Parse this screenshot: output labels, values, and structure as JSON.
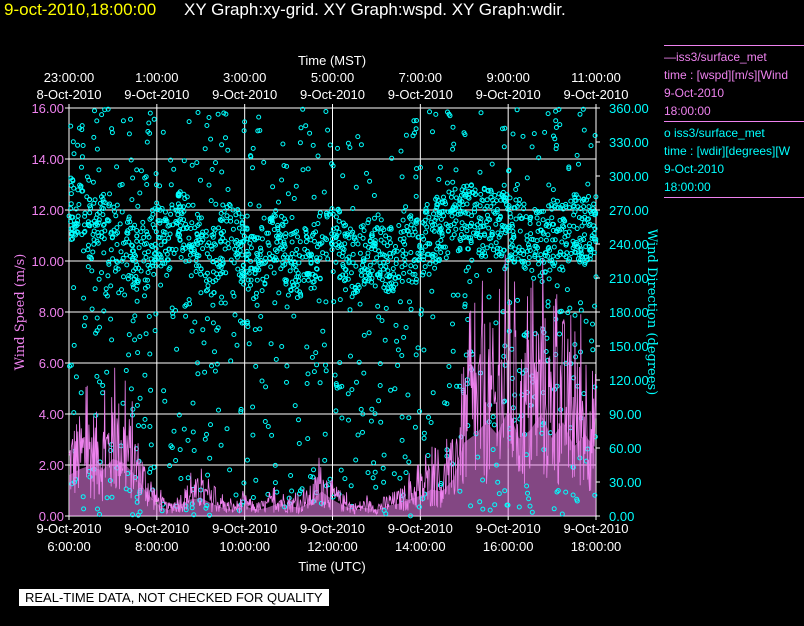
{
  "header": {
    "datetime": "9-oct-2010,18:00:00",
    "titles": "XY Graph:xy-grid.  XY Graph:wspd.  XY Graph:wdir."
  },
  "legend": {
    "wspd": {
      "line1": "—iss3/surface_met",
      "line2": "time : [wspd][m/s][Wind",
      "line3": "9-Oct-2010",
      "line4": "18:00:00"
    },
    "wdir": {
      "line1": "o  iss3/surface_met",
      "line2": "time : [wdir][degrees][W",
      "line3": "9-Oct-2010",
      "line4": "18:00:00"
    }
  },
  "footer": {
    "quality_note": "REAL-TIME DATA, NOT CHECKED FOR QUALITY"
  },
  "chart_data": {
    "type": "line",
    "x_axis_bottom": {
      "label": "Time (UTC)",
      "ticks": [
        {
          "date": "9-Oct-2010",
          "time": "6:00:00"
        },
        {
          "date": "9-Oct-2010",
          "time": "8:00:00"
        },
        {
          "date": "9-Oct-2010",
          "time": "10:00:00"
        },
        {
          "date": "9-Oct-2010",
          "time": "12:00:00"
        },
        {
          "date": "9-Oct-2010",
          "time": "14:00:00"
        },
        {
          "date": "9-Oct-2010",
          "time": "16:00:00"
        },
        {
          "date": "9-Oct-2010",
          "time": "18:00:00"
        }
      ]
    },
    "x_axis_top": {
      "label": "Time (MST)",
      "ticks": [
        {
          "time": "23:00:00",
          "date": "8-Oct-2010"
        },
        {
          "time": "1:00:00",
          "date": "9-Oct-2010"
        },
        {
          "time": "3:00:00",
          "date": "9-Oct-2010"
        },
        {
          "time": "5:00:00",
          "date": "9-Oct-2010"
        },
        {
          "time": "7:00:00",
          "date": "9-Oct-2010"
        },
        {
          "time": "9:00:00",
          "date": "9-Oct-2010"
        },
        {
          "time": "11:00:00",
          "date": "9-Oct-2010"
        }
      ]
    },
    "xlim_utc_hours": [
      6,
      18
    ],
    "y_left": {
      "label": "Wind Speed (m/s)",
      "ylim": [
        0,
        16
      ],
      "ticks": [
        "0.00",
        "2.00",
        "4.00",
        "6.00",
        "8.00",
        "10.00",
        "12.00",
        "14.00",
        "16.00"
      ]
    },
    "y_right": {
      "label": "Wind Direction (degrees)",
      "ylim": [
        0,
        360
      ],
      "ticks": [
        "0.00",
        "30.00",
        "60.00",
        "90.00",
        "120.00",
        "150.00",
        "180.00",
        "210.00",
        "240.00",
        "270.00",
        "300.00",
        "330.00",
        "360.00"
      ]
    },
    "grid": true,
    "series": [
      {
        "name": "iss3/surface_met wspd",
        "kind": "line",
        "color": "#ee82ee",
        "x_utc_hours": [
          6.0,
          6.25,
          6.5,
          6.75,
          7.0,
          7.25,
          7.5,
          7.75,
          8.0,
          8.25,
          8.5,
          8.75,
          9.0,
          9.25,
          9.5,
          9.75,
          10.0,
          10.25,
          10.5,
          10.75,
          11.0,
          11.25,
          11.5,
          11.75,
          12.0,
          12.25,
          12.5,
          12.75,
          13.0,
          13.25,
          13.5,
          13.75,
          14.0,
          14.25,
          14.5,
          14.75,
          15.0,
          15.25,
          15.5,
          15.75,
          16.0,
          16.25,
          16.5,
          16.75,
          17.0,
          17.25,
          17.5,
          17.75,
          18.0
        ],
        "values": [
          2.0,
          2.3,
          2.5,
          2.2,
          2.8,
          2.6,
          2.0,
          1.2,
          0.6,
          0.3,
          0.5,
          0.8,
          0.9,
          0.6,
          0.4,
          0.3,
          0.5,
          0.3,
          0.4,
          0.6,
          0.5,
          0.4,
          0.7,
          1.2,
          0.8,
          0.5,
          0.3,
          0.4,
          0.3,
          0.5,
          0.6,
          0.8,
          1.0,
          1.3,
          1.2,
          1.8,
          3.6,
          4.0,
          4.6,
          4.0,
          5.2,
          3.8,
          4.2,
          5.0,
          3.8,
          4.6,
          3.4,
          4.0,
          3.2
        ]
      },
      {
        "name": "iss3/surface_met wdir",
        "kind": "scatter",
        "color": "#00ffff",
        "x_utc_hours": [
          6.0,
          6.25,
          6.5,
          6.75,
          7.0,
          7.25,
          7.5,
          7.75,
          8.0,
          8.25,
          8.5,
          8.75,
          9.0,
          9.25,
          9.5,
          9.75,
          10.0,
          10.25,
          10.5,
          10.75,
          11.0,
          11.25,
          11.5,
          11.75,
          12.0,
          12.25,
          12.5,
          12.75,
          13.0,
          13.25,
          13.5,
          13.75,
          14.0,
          14.25,
          14.5,
          14.75,
          15.0,
          15.25,
          15.5,
          15.75,
          16.0,
          16.25,
          16.5,
          16.75,
          17.0,
          17.25,
          17.5,
          17.75,
          18.0
        ],
        "values": [
          270,
          265,
          255,
          260,
          245,
          240,
          230,
          225,
          250,
          240,
          260,
          250,
          235,
          220,
          240,
          250,
          230,
          215,
          235,
          245,
          230,
          220,
          230,
          240,
          250,
          235,
          220,
          230,
          240,
          225,
          230,
          235,
          240,
          250,
          255,
          260,
          265,
          260,
          258,
          262,
          255,
          250,
          245,
          240,
          250,
          245,
          255,
          250,
          260
        ]
      }
    ]
  }
}
